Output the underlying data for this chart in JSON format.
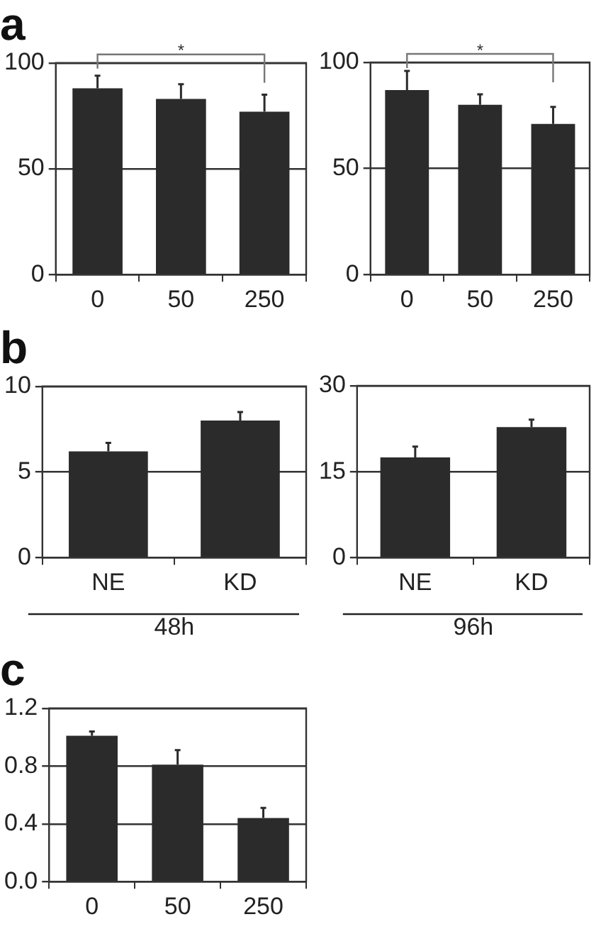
{
  "chart_data": [
    {
      "type": "bar",
      "title": "a",
      "categories": [
        "0",
        "50",
        "250"
      ],
      "values": [
        88,
        83,
        77
      ],
      "errors": [
        [
          88,
          94
        ],
        [
          83,
          90
        ],
        [
          77,
          85
        ]
      ],
      "color": "#2b2b2b",
      "ylim": [
        0,
        100
      ],
      "yticks": [
        0,
        50,
        100
      ],
      "grid": "y",
      "annotations": [
        "*"
      ]
    },
    {
      "type": "bar",
      "categories": [
        "0",
        "50",
        "250"
      ],
      "values": [
        87,
        80,
        71
      ],
      "errors": [
        [
          87,
          96
        ],
        [
          80,
          85
        ],
        [
          71,
          79
        ]
      ],
      "color": "#2b2b2b",
      "ylim": [
        0,
        100
      ],
      "yticks": [
        0,
        50,
        100
      ],
      "grid": "y",
      "annotations": [
        "*"
      ]
    },
    {
      "type": "bar",
      "title": "b",
      "categories": [
        "NE",
        "KD"
      ],
      "xlabel": "48h",
      "values": [
        6.2,
        8.0
      ],
      "errors": [
        [
          6.2,
          6.7
        ],
        [
          8.0,
          8.5
        ]
      ],
      "color": "#2b2b2b",
      "ylim": [
        0,
        10
      ],
      "yticks": [
        0,
        5,
        10
      ],
      "grid": "y"
    },
    {
      "type": "bar",
      "categories": [
        "NE",
        "KD"
      ],
      "xlabel": "96h",
      "values": [
        17.5,
        22.8
      ],
      "errors": [
        [
          17.5,
          19.4
        ],
        [
          22.8,
          24.1
        ]
      ],
      "color": "#2b2b2b",
      "ylim": [
        0,
        30
      ],
      "yticks": [
        0,
        15,
        30
      ],
      "grid": "y"
    },
    {
      "type": "bar",
      "title": "c",
      "categories": [
        "0",
        "50",
        "250"
      ],
      "values": [
        1.01,
        0.81,
        0.44
      ],
      "errors": [
        [
          1.01,
          1.04
        ],
        [
          0.81,
          0.91
        ],
        [
          0.44,
          0.51
        ]
      ],
      "color": "#2b2b2b",
      "ylim": [
        0,
        1.2
      ],
      "yticks": [
        {
          "value": 0,
          "label": "0.0"
        },
        {
          "value": 0.4,
          "label": "0.4"
        },
        {
          "value": 0.8,
          "label": "0.8"
        },
        {
          "value": 1.2,
          "label": "1.2"
        }
      ],
      "grid": "y"
    }
  ]
}
